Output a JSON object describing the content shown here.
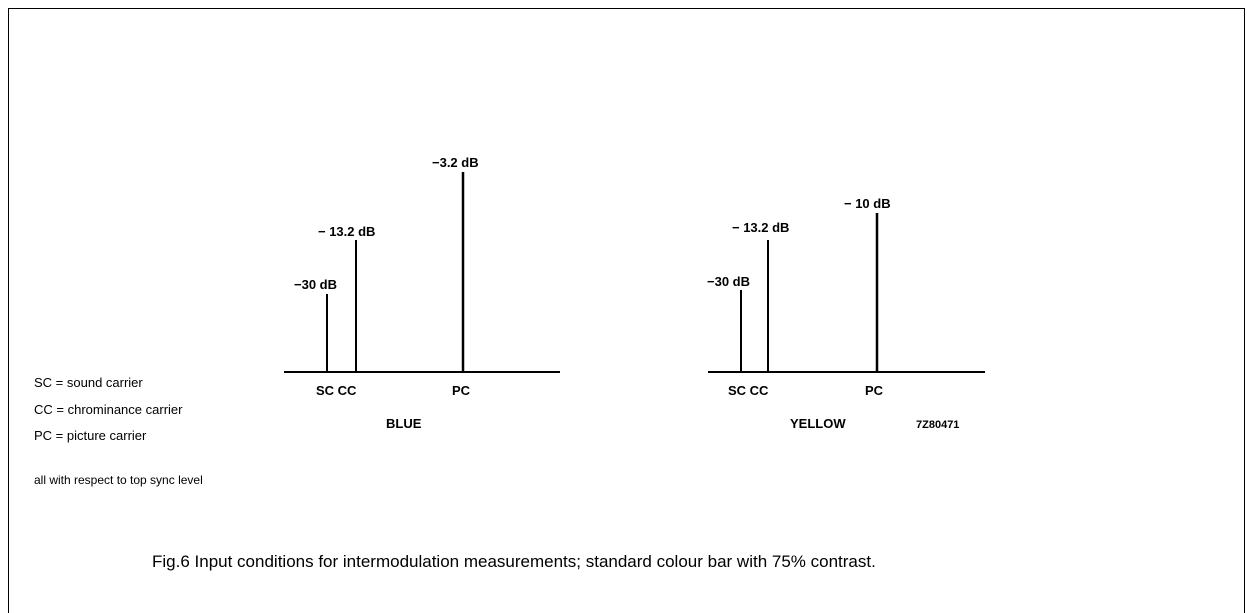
{
  "diagrams": [
    {
      "name": "BLUE",
      "axis_labels": {
        "sc_cc": "SC CC",
        "pc": "PC"
      },
      "carriers": [
        {
          "id": "SC",
          "level_label": "−30 dB",
          "level_db": -30
        },
        {
          "id": "CC",
          "level_label": "− 13.2 dB",
          "level_db": -13.2
        },
        {
          "id": "PC",
          "level_label": "−3.2 dB",
          "level_db": -3.2
        }
      ]
    },
    {
      "name": "YELLOW",
      "axis_labels": {
        "sc_cc": "SC CC",
        "pc": "PC"
      },
      "code": "7Z80471",
      "carriers": [
        {
          "id": "SC",
          "level_label": "−30 dB",
          "level_db": -30
        },
        {
          "id": "CC",
          "level_label": "− 13.2 dB",
          "level_db": -13.2
        },
        {
          "id": "PC",
          "level_label": "− 10 dB",
          "level_db": -10
        }
      ]
    }
  ],
  "legend": [
    "SC = sound carrier",
    "CC = chrominance carrier",
    "PC = picture carrier"
  ],
  "note": "all with respect to top sync level",
  "caption": "Fig.6  Input conditions for intermodulation measurements; standard colour bar with 75% contrast."
}
